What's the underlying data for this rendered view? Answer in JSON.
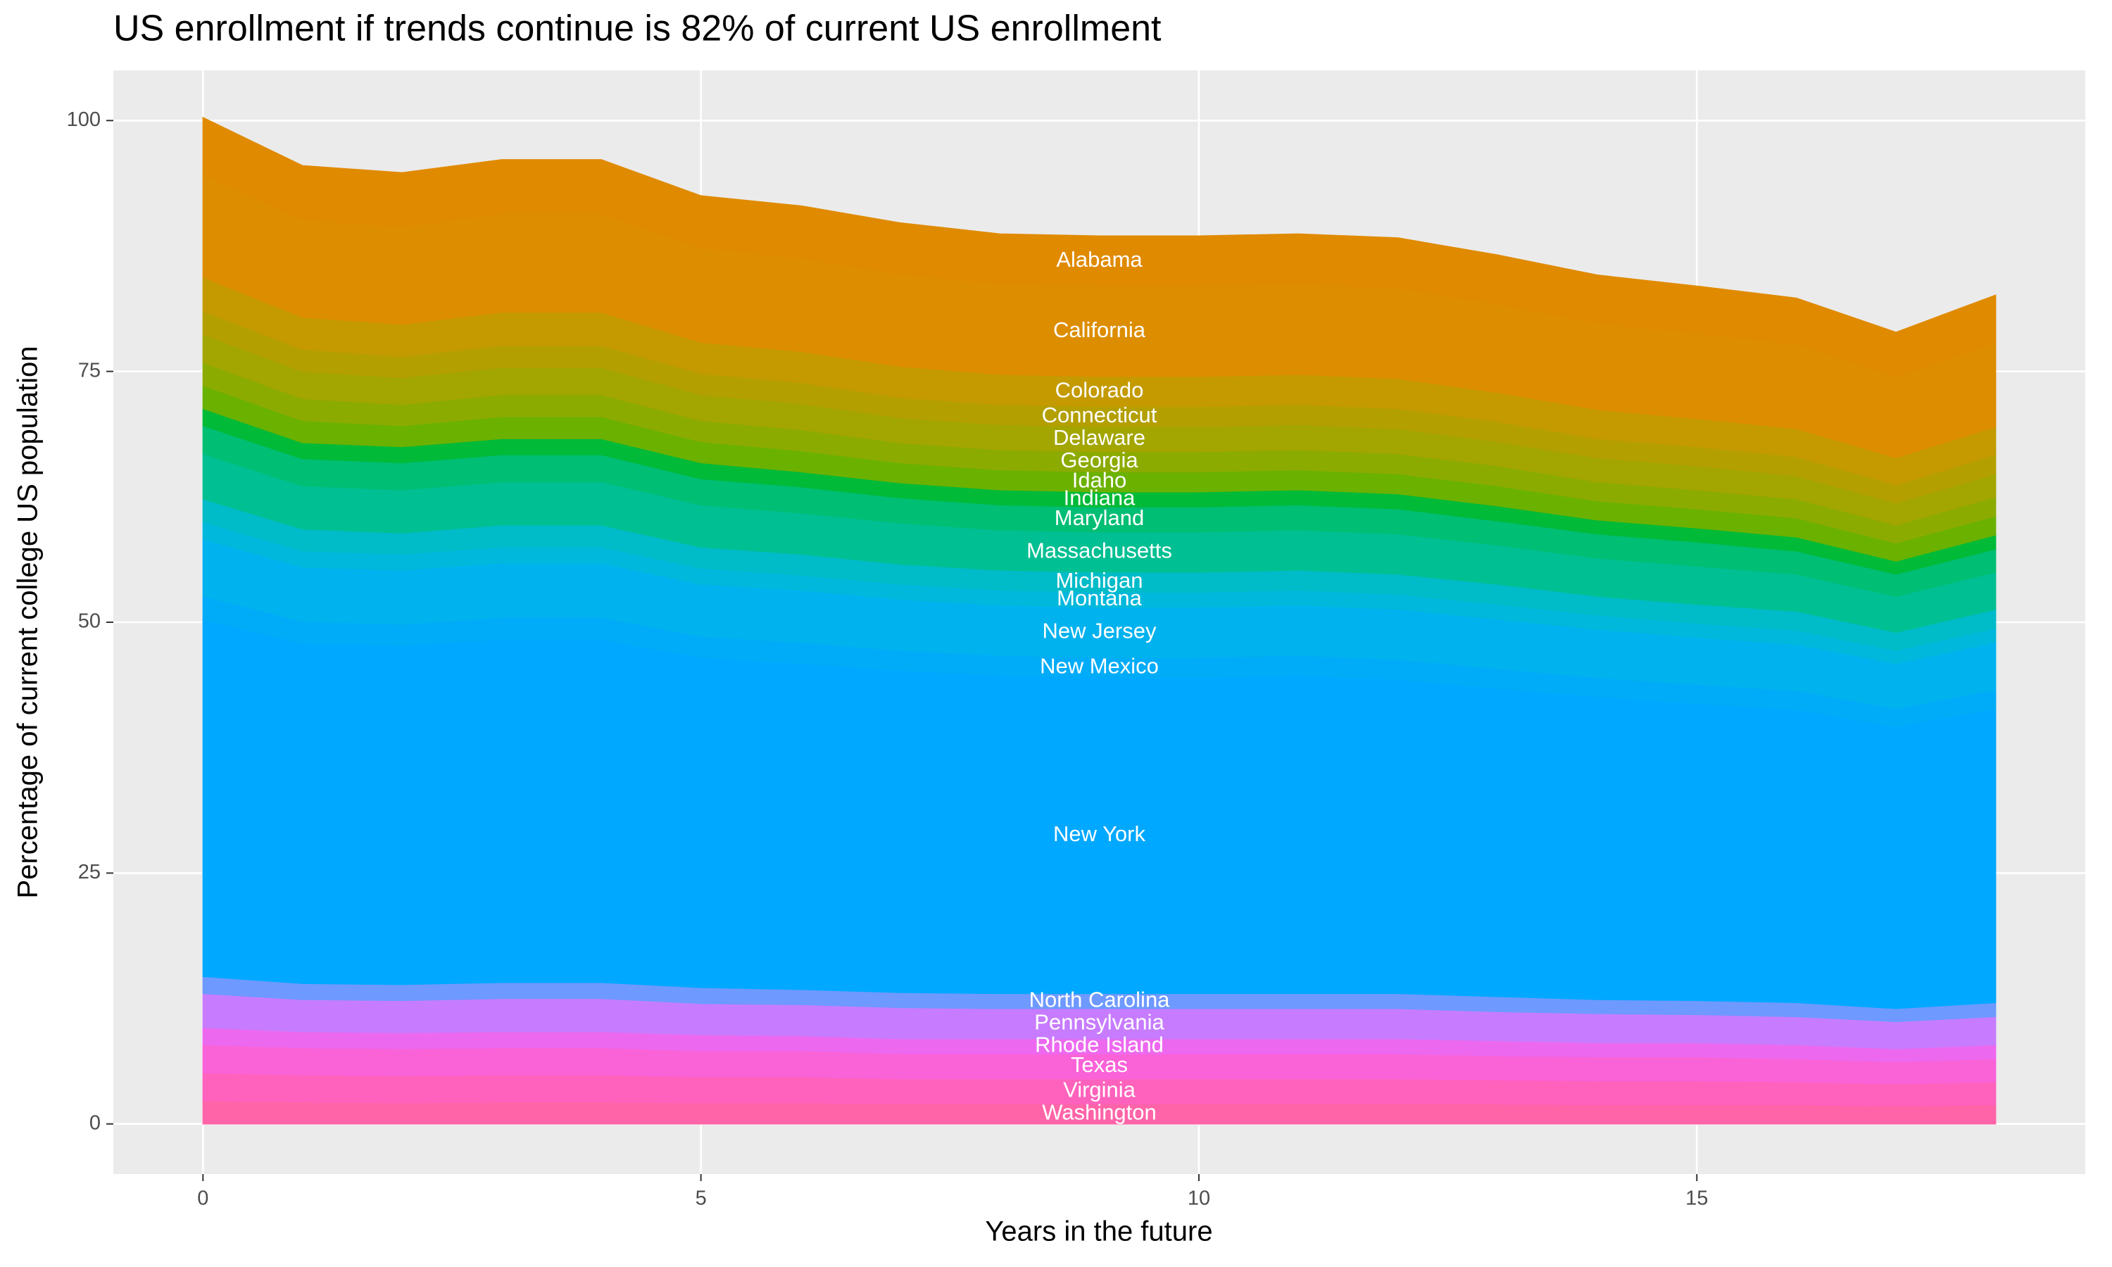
{
  "chart_data": {
    "type": "stacked-area",
    "title": "US enrollment if trends continue is 82% of current US enrollment",
    "x_label": "Years in the future",
    "y_label": "Percentage of current college US population",
    "x": [
      0,
      1,
      2,
      3,
      4,
      5,
      6,
      7,
      8,
      9,
      10,
      11,
      12,
      13,
      14,
      15,
      16,
      17,
      18
    ],
    "xlim": [
      -0.9,
      18.9
    ],
    "xticks": [
      0,
      5,
      10,
      15
    ],
    "ylim": [
      -5,
      105
    ],
    "yticks": [
      0,
      25,
      50,
      75,
      100
    ],
    "grid": true,
    "label_x": 9,
    "series": [
      {
        "name": "Washington",
        "color": "#FF64A8",
        "values": [
          2.3,
          2.2,
          2.1,
          2.2,
          2.2,
          2.1,
          2.1,
          2.0,
          2.0,
          2,
          2.0,
          2.0,
          2.0,
          2.0,
          1.9,
          1.9,
          1.9,
          1.8,
          1.9
        ]
      },
      {
        "name": "Virginia",
        "color": "#FF62BC",
        "values": [
          2.8,
          2.7,
          2.7,
          2.7,
          2.7,
          2.6,
          2.6,
          2.5,
          2.5,
          2.5,
          2.5,
          2.5,
          2.5,
          2.4,
          2.4,
          2.4,
          2.3,
          2.2,
          2.3
        ]
      },
      {
        "name": "Texas",
        "color": "#FA62D8",
        "values": [
          2.8,
          2.7,
          2.7,
          2.7,
          2.7,
          2.6,
          2.6,
          2.5,
          2.5,
          2.5,
          2.5,
          2.5,
          2.5,
          2.4,
          2.4,
          2.4,
          2.3,
          2.2,
          2.3
        ]
      },
      {
        "name": "Rhode Island",
        "color": "#EC69EF",
        "values": [
          1.7,
          1.6,
          1.6,
          1.6,
          1.6,
          1.6,
          1.5,
          1.5,
          1.5,
          1.5,
          1.5,
          1.5,
          1.5,
          1.5,
          1.4,
          1.4,
          1.4,
          1.3,
          1.4
        ]
      },
      {
        "name": "Pennsylvania",
        "color": "#C77CFF",
        "values": [
          3.4,
          3.2,
          3.2,
          3.3,
          3.3,
          3.1,
          3.1,
          3.1,
          3.0,
          3,
          3.0,
          3.0,
          3.0,
          2.9,
          2.9,
          2.8,
          2.8,
          2.7,
          2.8
        ]
      },
      {
        "name": "North Carolina",
        "color": "#6E99FF",
        "values": [
          1.7,
          1.6,
          1.6,
          1.6,
          1.6,
          1.6,
          1.5,
          1.5,
          1.5,
          1.5,
          1.5,
          1.5,
          1.5,
          1.5,
          1.4,
          1.4,
          1.4,
          1.3,
          1.4
        ]
      },
      {
        "name": "New York",
        "color": "#00A8FF",
        "values": [
          35.6,
          33.9,
          33.8,
          34.2,
          34.2,
          32.9,
          32.5,
          32.1,
          31.7,
          31.5,
          31.5,
          31.7,
          31.3,
          30.7,
          30.2,
          29.6,
          29.2,
          28.1,
          29.3
        ]
      },
      {
        "name": "New Mexico",
        "color": "#00ACF8",
        "values": [
          2.3,
          2.2,
          2.1,
          2.2,
          2.2,
          2.1,
          2.1,
          2.0,
          2.0,
          2,
          2.0,
          2.0,
          2.0,
          2.0,
          1.9,
          1.9,
          1.9,
          1.8,
          1.9
        ]
      },
      {
        "name": "New Jersey",
        "color": "#00B2EE",
        "values": [
          5.7,
          5.4,
          5.4,
          5.4,
          5.4,
          5.2,
          5.2,
          5.1,
          5.0,
          5,
          5.0,
          5.0,
          5.0,
          4.9,
          4.8,
          4.7,
          4.6,
          4.5,
          4.7
        ]
      },
      {
        "name": "Montana",
        "color": "#00B8DC",
        "values": [
          1.7,
          1.6,
          1.6,
          1.6,
          1.6,
          1.6,
          1.5,
          1.5,
          1.5,
          1.5,
          1.5,
          1.5,
          1.5,
          1.5,
          1.4,
          1.4,
          1.4,
          1.3,
          1.4
        ]
      },
      {
        "name": "Michigan",
        "color": "#00BBC8",
        "values": [
          2.3,
          2.2,
          2.1,
          2.2,
          2.2,
          2.1,
          2.1,
          2.0,
          2.0,
          2,
          2.0,
          2.0,
          2.0,
          2.0,
          1.9,
          1.9,
          1.9,
          1.8,
          1.9
        ]
      },
      {
        "name": "Massachusetts",
        "color": "#00BF92",
        "values": [
          4.5,
          4.3,
          4.3,
          4.3,
          4.3,
          4.2,
          4.1,
          4.1,
          4.0,
          4,
          4.0,
          4.0,
          4.0,
          3.9,
          3.8,
          3.8,
          3.7,
          3.6,
          3.7
        ]
      },
      {
        "name": "Maryland",
        "color": "#00BE74",
        "values": [
          2.8,
          2.7,
          2.7,
          2.7,
          2.7,
          2.6,
          2.6,
          2.5,
          2.5,
          2.5,
          2.5,
          2.5,
          2.5,
          2.4,
          2.4,
          2.4,
          2.3,
          2.2,
          2.3
        ]
      },
      {
        "name": "Indiana",
        "color": "#00BA38",
        "values": [
          1.7,
          1.6,
          1.6,
          1.6,
          1.6,
          1.6,
          1.5,
          1.5,
          1.5,
          1.5,
          1.5,
          1.5,
          1.5,
          1.5,
          1.4,
          1.4,
          1.4,
          1.3,
          1.4
        ]
      },
      {
        "name": "Idaho",
        "color": "#6BB100",
        "values": [
          2.3,
          2.2,
          2.1,
          2.2,
          2.2,
          2.1,
          2.1,
          2.0,
          2.0,
          2,
          2.0,
          2.0,
          2.0,
          2.0,
          1.9,
          1.9,
          1.9,
          1.8,
          1.9
        ]
      },
      {
        "name": "Georgia",
        "color": "#8CAB00",
        "values": [
          2.3,
          2.2,
          2.1,
          2.2,
          2.2,
          2.1,
          2.1,
          2.0,
          2.0,
          2,
          2.0,
          2.0,
          2.0,
          2.0,
          1.9,
          1.9,
          1.9,
          1.8,
          1.9
        ]
      },
      {
        "name": "Delaware",
        "color": "#A3A500",
        "values": [
          2.8,
          2.7,
          2.7,
          2.7,
          2.7,
          2.6,
          2.6,
          2.5,
          2.5,
          2.5,
          2.5,
          2.5,
          2.5,
          2.4,
          2.4,
          2.4,
          2.3,
          2.2,
          2.3
        ]
      },
      {
        "name": "Connecticut",
        "color": "#B49F00",
        "values": [
          2.3,
          2.2,
          2.1,
          2.2,
          2.2,
          2.1,
          2.1,
          2.0,
          2.0,
          2,
          2.0,
          2.0,
          2.0,
          2.0,
          1.9,
          1.9,
          1.9,
          1.8,
          1.9
        ]
      },
      {
        "name": "Colorado",
        "color": "#C49A00",
        "values": [
          3.4,
          3.2,
          3.2,
          3.3,
          3.3,
          3.1,
          3.1,
          3.1,
          3.0,
          3,
          3.0,
          3.0,
          3.0,
          2.9,
          2.9,
          2.8,
          2.8,
          2.7,
          2.8
        ]
      },
      {
        "name": "California",
        "color": "#DD8D00",
        "values": [
          10.2,
          9.7,
          9.7,
          9.8,
          9.8,
          9.4,
          9.3,
          9.2,
          9.0,
          9,
          9.0,
          9.0,
          9.0,
          8.8,
          8.6,
          8.5,
          8.4,
          8.0,
          8.4
        ]
      },
      {
        "name": "Alabama",
        "color": "#E08A00",
        "values": [
          5.7,
          5.4,
          5.4,
          5.4,
          5.4,
          5.2,
          5.2,
          5.1,
          5.0,
          5,
          5.0,
          5.0,
          5.0,
          4.9,
          4.8,
          4.7,
          4.6,
          4.5,
          4.7
        ]
      }
    ]
  }
}
